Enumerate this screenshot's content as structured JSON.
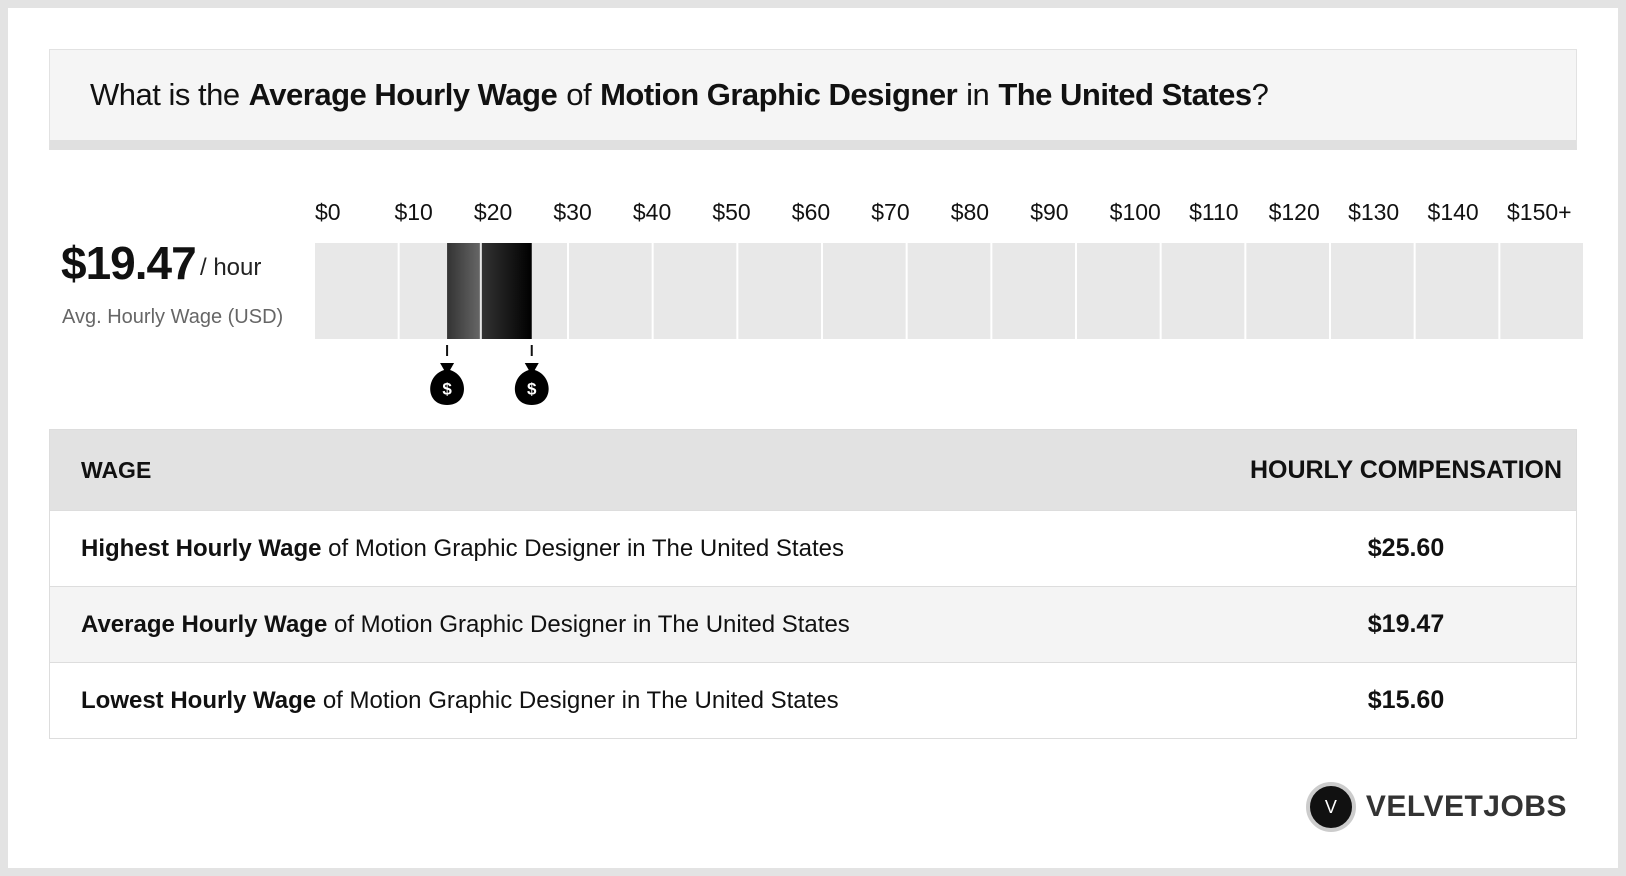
{
  "header": {
    "title": {
      "prefix": "What is the",
      "measure": "Average Hourly Wage",
      "of": "of",
      "job": "Motion Graphic Designer",
      "in": "in",
      "location": "The United States",
      "suffix": "?"
    }
  },
  "summary": {
    "value": "$19.47",
    "unit": "/ hour",
    "label": "Avg. Hourly Wage (USD)"
  },
  "wage_scale": {
    "xlim": [
      0,
      150
    ],
    "ticks": [
      {
        "value": 0,
        "label": "$0"
      },
      {
        "value": 10,
        "label": "$10"
      },
      {
        "value": 20,
        "label": "$20"
      },
      {
        "value": 30,
        "label": "$30"
      },
      {
        "value": 40,
        "label": "$40"
      },
      {
        "value": 50,
        "label": "$50"
      },
      {
        "value": 60,
        "label": "$60"
      },
      {
        "value": 70,
        "label": "$70"
      },
      {
        "value": 80,
        "label": "$80"
      },
      {
        "value": 90,
        "label": "$90"
      },
      {
        "value": 100,
        "label": "$100"
      },
      {
        "value": 110,
        "label": "$110"
      },
      {
        "value": 120,
        "label": "$120"
      },
      {
        "value": 130,
        "label": "$130"
      },
      {
        "value": 140,
        "label": "$140"
      },
      {
        "value": 150,
        "label": "$150+"
      }
    ],
    "range": {
      "low": 15.6,
      "average": 19.47,
      "high": 25.6
    }
  },
  "table": {
    "headers": [
      "WAGE",
      "HOURLY COMPENSATION"
    ],
    "rows": [
      {
        "bold": "Highest Hourly Wage",
        "rest": "of Motion Graphic Designer in The United States",
        "value": "$25.60"
      },
      {
        "bold": "Average Hourly Wage",
        "rest": "of Motion Graphic Designer in The United States",
        "value": "$19.47"
      },
      {
        "bold": "Lowest Hourly Wage",
        "rest": "of Motion Graphic Designer in The United States",
        "value": "$15.60"
      }
    ]
  },
  "brand": {
    "logo": "V",
    "name": "VELVETJOBS"
  }
}
